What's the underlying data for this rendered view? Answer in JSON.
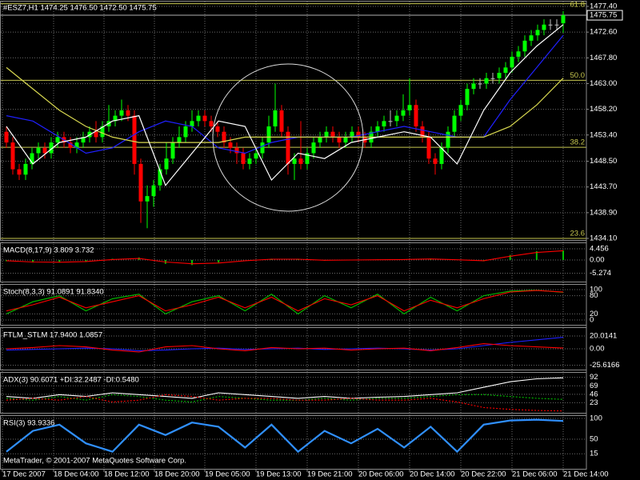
{
  "main": {
    "header": "#ESZ7,H1  1474.25 1476.50 1472.50 1475.75",
    "ylim": [
      1434.1,
      1477.4
    ],
    "yticks": [
      {
        "value": 1477.4,
        "label": "1477.40"
      },
      {
        "value": 1472.6,
        "label": "1472.60"
      },
      {
        "value": 1467.8,
        "label": "1467.80"
      },
      {
        "value": 1463.0,
        "label": "1463.00"
      },
      {
        "value": 1458.2,
        "label": "1458.20"
      },
      {
        "value": 1453.4,
        "label": "1453.40"
      },
      {
        "value": 1448.5,
        "label": "1448.50"
      },
      {
        "value": 1443.7,
        "label": "1443.70"
      },
      {
        "value": 1438.9,
        "label": "1438.90"
      },
      {
        "value": 1434.1,
        "label": "1434.10"
      }
    ],
    "up_color": "#00ff00",
    "down_color": "#ff0000",
    "doji_color": "#c0c0c0",
    "candles": [
      [
        1454,
        1455,
        1451,
        1452
      ],
      [
        1452,
        1453,
        1446,
        1447
      ],
      [
        1447,
        1448,
        1445,
        1446
      ],
      [
        1446,
        1449,
        1445,
        1448
      ],
      [
        1448,
        1451,
        1447,
        1450
      ],
      [
        1450,
        1452,
        1449,
        1451
      ],
      [
        1451,
        1452,
        1449,
        1450
      ],
      [
        1450,
        1453,
        1449,
        1452
      ],
      [
        1452,
        1454,
        1451,
        1453
      ],
      [
        1453,
        1454,
        1451,
        1452
      ],
      [
        1452,
        1453,
        1450,
        1451
      ],
      [
        1451,
        1453,
        1450,
        1452
      ],
      [
        1452,
        1454,
        1451,
        1453
      ],
      [
        1453,
        1455,
        1452,
        1454
      ],
      [
        1454,
        1456,
        1452,
        1453
      ],
      [
        1453,
        1456,
        1452,
        1455
      ],
      [
        1455,
        1459,
        1454,
        1456
      ],
      [
        1456,
        1458,
        1455,
        1457
      ],
      [
        1457,
        1460,
        1456,
        1458
      ],
      [
        1458,
        1459,
        1456,
        1457
      ],
      [
        1457,
        1458,
        1446,
        1448
      ],
      [
        1448,
        1449,
        1437,
        1441
      ],
      [
        1441,
        1444,
        1436,
        1442
      ],
      [
        1442,
        1445,
        1440,
        1444
      ],
      [
        1444,
        1448,
        1443,
        1447
      ],
      [
        1447,
        1452,
        1446,
        1449
      ],
      [
        1449,
        1453,
        1448,
        1452
      ],
      [
        1452,
        1455,
        1451,
        1453
      ],
      [
        1453,
        1456,
        1452,
        1455
      ],
      [
        1455,
        1458,
        1454,
        1456
      ],
      [
        1456,
        1458,
        1455,
        1457
      ],
      [
        1457,
        1458,
        1455,
        1456
      ],
      [
        1456,
        1457,
        1454,
        1455
      ],
      [
        1455,
        1456,
        1453,
        1454
      ],
      [
        1454,
        1455,
        1451,
        1452
      ],
      [
        1452,
        1453,
        1450,
        1451
      ],
      [
        1451,
        1452,
        1448,
        1450
      ],
      [
        1450,
        1451,
        1447,
        1448
      ],
      [
        1448,
        1450,
        1447,
        1449
      ],
      [
        1449,
        1451,
        1448,
        1450
      ],
      [
        1450,
        1453,
        1449,
        1452
      ],
      [
        1452,
        1457,
        1451,
        1455
      ],
      [
        1455,
        1463,
        1454,
        1458
      ],
      [
        1458,
        1459,
        1453,
        1454
      ],
      [
        1454,
        1455,
        1446,
        1448
      ],
      [
        1448,
        1450,
        1445,
        1449
      ],
      [
        1449,
        1456,
        1447,
        1448
      ],
      [
        1448,
        1451,
        1447,
        1450
      ],
      [
        1450,
        1453,
        1449,
        1452
      ],
      [
        1452,
        1454,
        1451,
        1453
      ],
      [
        1453,
        1455,
        1452,
        1454
      ],
      [
        1454,
        1455,
        1452,
        1453
      ],
      [
        1453,
        1454,
        1451,
        1452
      ],
      [
        1452,
        1454,
        1451,
        1453
      ],
      [
        1453,
        1455,
        1452,
        1454
      ],
      [
        1454,
        1455,
        1452,
        1453
      ],
      [
        1453,
        1454,
        1451,
        1452
      ],
      [
        1452,
        1455,
        1451,
        1454
      ],
      [
        1454,
        1456,
        1453,
        1455
      ],
      [
        1455,
        1457,
        1454,
        1456
      ],
      [
        1456,
        1458,
        1455,
        1456
      ],
      [
        1456,
        1458,
        1455,
        1457
      ],
      [
        1457,
        1461,
        1456,
        1458
      ],
      [
        1458,
        1464,
        1457,
        1459
      ],
      [
        1459,
        1460,
        1454,
        1455
      ],
      [
        1455,
        1456,
        1452,
        1453
      ],
      [
        1453,
        1454,
        1448,
        1449
      ],
      [
        1449,
        1450,
        1446,
        1448
      ],
      [
        1448,
        1452,
        1447,
        1451
      ],
      [
        1451,
        1455,
        1450,
        1454
      ],
      [
        1454,
        1458,
        1453,
        1457
      ],
      [
        1457,
        1460,
        1456,
        1459
      ],
      [
        1459,
        1463,
        1458,
        1462
      ],
      [
        1462,
        1464,
        1461,
        1463
      ],
      [
        1463,
        1464,
        1462,
        1463
      ],
      [
        1463,
        1465,
        1462,
        1464
      ],
      [
        1464,
        1465,
        1463,
        1464
      ],
      [
        1464,
        1466,
        1463,
        1465
      ],
      [
        1465,
        1467,
        1464,
        1466
      ],
      [
        1466,
        1469,
        1465,
        1468
      ],
      [
        1468,
        1470,
        1467,
        1469
      ],
      [
        1469,
        1472,
        1468,
        1471
      ],
      [
        1471,
        1473,
        1470,
        1472
      ],
      [
        1472,
        1474,
        1471,
        1473
      ],
      [
        1473,
        1475,
        1472,
        1474
      ],
      [
        1474,
        1475,
        1473,
        1474
      ],
      [
        1474,
        1475,
        1473,
        1474
      ],
      [
        1474.25,
        1476.5,
        1472.5,
        1475.75
      ]
    ],
    "lines": [
      {
        "color": "#2020ff",
        "values": [
          1457,
          1456,
          1453,
          1450,
          1451,
          1454,
          1456,
          1455,
          1451,
          1450,
          1452,
          1453,
          1453,
          1453,
          1454,
          1455,
          1454,
          1453,
          1453,
          1460,
          1466,
          1472
        ]
      },
      {
        "color": "#d8d850",
        "values": [
          1466,
          1462,
          1458,
          1455,
          1453,
          1452,
          1452,
          1452,
          1452,
          1453,
          1453,
          1453,
          1453,
          1453,
          1453,
          1453,
          1453,
          1453,
          1453,
          1455,
          1459,
          1464
        ]
      },
      {
        "color": "#ffffff",
        "values": [
          1455,
          1448,
          1452,
          1453,
          1456,
          1457,
          1444,
          1450,
          1456,
          1455,
          1445,
          1450,
          1449,
          1452,
          1453,
          1454,
          1453,
          1448,
          1458,
          1465,
          1470,
          1474
        ]
      }
    ],
    "fib": [
      {
        "label": "61.8",
        "value": 1477.9
      },
      {
        "label": "50.0",
        "value": 1463.6
      },
      {
        "label": "38.2",
        "value": 1451.1
      },
      {
        "label": "23.6",
        "value": 1434.1
      }
    ],
    "fib_color": "#c8c850",
    "price_label": {
      "value": 1475.75,
      "label": "1475.75"
    }
  },
  "panels": [
    {
      "name": "MACD(8,17,9) 3.809 3.732",
      "ylim": [
        -8.6,
        7.0
      ],
      "yticks": [
        4.456,
        {
          "value": 0,
          "label": "0.00"
        },
        -5.274
      ],
      "series": [
        {
          "kind": "histogram",
          "color": "#00c000",
          "values": [
            -0.5,
            -1,
            -1,
            -0.5,
            0.5,
            1,
            -1.5,
            -2,
            -1,
            0,
            0.5,
            0.2,
            -0.3,
            0,
            0.2,
            0.3,
            0.5,
            0,
            -0.5,
            2,
            3.5,
            3.8
          ]
        },
        {
          "kind": "line",
          "color": "#ff0000",
          "values": [
            -0.3,
            -0.8,
            -0.9,
            -0.6,
            0.2,
            0.6,
            -0.8,
            -1.5,
            -1.2,
            -0.3,
            0.3,
            0.3,
            -0.1,
            0,
            0.1,
            0.2,
            0.4,
            0.1,
            -0.3,
            1.5,
            3,
            3.7
          ]
        }
      ]
    },
    {
      "name": "Stoch(8,3,3) 91.0891 91.8340",
      "ylim": [
        0,
        100
      ],
      "yticks": [
        100,
        80,
        20,
        0
      ],
      "series": [
        {
          "kind": "line",
          "color": "#00c000",
          "values": [
            20,
            60,
            80,
            30,
            70,
            85,
            20,
            60,
            80,
            30,
            85,
            20,
            80,
            40,
            85,
            20,
            75,
            30,
            80,
            95,
            98,
            91.0891
          ]
        },
        {
          "kind": "line",
          "color": "#ff0000",
          "values": [
            30,
            50,
            75,
            40,
            60,
            80,
            30,
            50,
            75,
            40,
            75,
            30,
            70,
            50,
            80,
            30,
            65,
            40,
            70,
            92,
            97,
            91.834
          ]
        }
      ]
    },
    {
      "name": "FTLM_STLM 17.9400 1.0857",
      "ylim": [
        -32.5,
        33.75
      ],
      "yticks": [
        20.0141,
        {
          "value": 0,
          "label": "0.00"
        },
        -25.6166
      ],
      "series": [
        {
          "kind": "line",
          "color": "#2020ff",
          "values": [
            -2,
            -1,
            0,
            1,
            0,
            -3,
            -2,
            0,
            1,
            -1,
            0,
            1,
            -1,
            0,
            1,
            0,
            -2,
            0,
            5,
            10,
            14,
            17.94
          ]
        },
        {
          "kind": "line",
          "color": "#ff0000",
          "values": [
            0,
            2,
            5,
            3,
            -2,
            -5,
            3,
            5,
            0,
            -3,
            2,
            0,
            1,
            -2,
            0,
            1,
            -3,
            2,
            8,
            5,
            3,
            1.0857
          ]
        }
      ]
    },
    {
      "name": "ADX(3) 90.6071 +DI:32.2487 -DI:0.5480",
      "ylim": [
        0,
        100
      ],
      "yticks": [
        92,
        69,
        46,
        23
      ],
      "series": [
        {
          "kind": "line",
          "color": "#ffffff",
          "values": [
            40,
            35,
            45,
            40,
            50,
            45,
            40,
            35,
            50,
            45,
            40,
            35,
            40,
            35,
            38,
            40,
            45,
            50,
            65,
            80,
            88,
            90.6071
          ]
        },
        {
          "kind": "dashed",
          "color": "#00c000",
          "values": [
            35,
            30,
            40,
            30,
            45,
            40,
            30,
            25,
            40,
            35,
            30,
            30,
            35,
            30,
            35,
            35,
            40,
            45,
            45,
            40,
            35,
            32.2487
          ]
        },
        {
          "kind": "dashed",
          "color": "#ff0000",
          "values": [
            30,
            35,
            30,
            40,
            25,
            30,
            45,
            40,
            30,
            35,
            35,
            30,
            30,
            35,
            30,
            30,
            35,
            25,
            10,
            5,
            2,
            0.548
          ]
        }
      ]
    },
    {
      "name": "RSI(3) 93.9336",
      "ylim": [
        0,
        100
      ],
      "yticks": [
        100,
        50,
        15
      ],
      "series": [
        {
          "kind": "thick",
          "color": "#3090ff",
          "values": [
            20,
            70,
            85,
            40,
            20,
            85,
            60,
            90,
            80,
            30,
            85,
            20,
            70,
            40,
            75,
            30,
            80,
            20,
            85,
            95,
            97,
            93.9336
          ]
        }
      ]
    }
  ],
  "time_axis": [
    "17 Dec 2007",
    "18 Dec 04:00",
    "18 Dec 12:00",
    "18 Dec 20:00",
    "19 Dec 05:00",
    "19 Dec 13:00",
    "19 Dec 21:00",
    "20 Dec 06:00",
    "20 Dec 14:00",
    "20 Dec 22:00",
    "21 Dec 06:00",
    "21 Dec 14:00"
  ],
  "copyright": "MetaTrader, © 2001-2007 MetaQuotes Software Corp."
}
